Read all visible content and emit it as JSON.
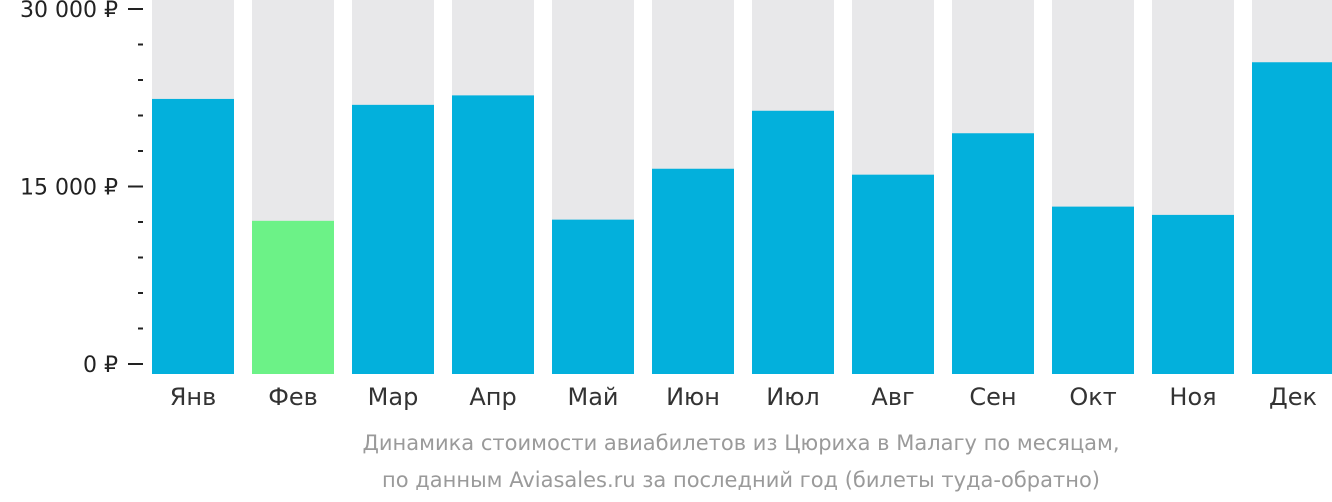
{
  "chart_data": {
    "type": "bar",
    "categories": [
      "Янв",
      "Фев",
      "Мар",
      "Апр",
      "Май",
      "Июн",
      "Июл",
      "Авг",
      "Сен",
      "Окт",
      "Ноя",
      "Дек"
    ],
    "values": [
      22400,
      12100,
      21900,
      22700,
      12200,
      16500,
      21400,
      16000,
      19500,
      13300,
      12600,
      25500
    ],
    "ylim": [
      0,
      31000
    ],
    "y_tick_labels": [
      "0 ₽",
      "15 000 ₽",
      "30 000 ₽"
    ],
    "y_tick_values": [
      0,
      15000,
      30000
    ],
    "y_minor_step": 3000,
    "highlight_index": 1,
    "colors": {
      "bar": "#03b0dc",
      "highlight": "#6cf287",
      "track": "#e8e8ea",
      "axis": "#222222"
    },
    "caption": [
      "Динамика стоимости авиабилетов из Цюриха в Малагу по месяцам,",
      "по данным Aviasales.ru за последний год (билеты туда-обратно)"
    ]
  }
}
